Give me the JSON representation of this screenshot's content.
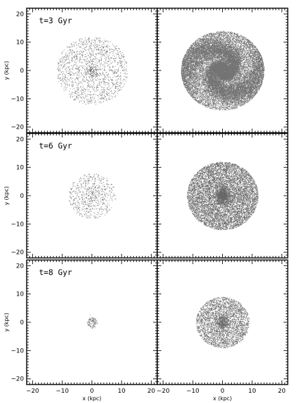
{
  "chart_data": {
    "type": "scatter",
    "layout": "3 rows x 2 columns of panels, shared axes",
    "xlabel": "x (kpc)",
    "ylabel": "y (kpc)",
    "xlim": [
      -22,
      22
    ],
    "ylim": [
      -22,
      22
    ],
    "xticks": [
      -20,
      -10,
      0,
      10,
      20
    ],
    "yticks": [
      -20,
      -10,
      0,
      10,
      20
    ],
    "grid": false,
    "panels": [
      {
        "row": 0,
        "col": 0,
        "time_label": "t=3 Gyr",
        "particles": {
          "n": 1600,
          "extent_kpc": 12,
          "core_kpc": 1.2,
          "core_fraction": 0.08,
          "spiral": false
        }
      },
      {
        "row": 0,
        "col": 1,
        "time_label": "",
        "particles": {
          "n": 24000,
          "extent_kpc": 14,
          "core_kpc": 1.4,
          "core_fraction": 0.07,
          "spiral": true
        }
      },
      {
        "row": 1,
        "col": 0,
        "time_label": "t=6 Gyr",
        "particles": {
          "n": 650,
          "extent_kpc": 8,
          "core_kpc": 1.5,
          "core_fraction": 0.12,
          "spiral": false
        }
      },
      {
        "row": 1,
        "col": 1,
        "time_label": "",
        "particles": {
          "n": 9000,
          "extent_kpc": 12,
          "core_kpc": 1.2,
          "core_fraction": 0.1,
          "spiral": false
        }
      },
      {
        "row": 2,
        "col": 0,
        "time_label": "t=8 Gyr",
        "particles": {
          "n": 120,
          "extent_kpc": 1.8,
          "core_kpc": 0.8,
          "core_fraction": 0.3,
          "spiral": false
        }
      },
      {
        "row": 2,
        "col": 1,
        "time_label": "",
        "particles": {
          "n": 3500,
          "extent_kpc": 9,
          "core_kpc": 1.1,
          "core_fraction": 0.12,
          "spiral": false
        }
      }
    ]
  }
}
